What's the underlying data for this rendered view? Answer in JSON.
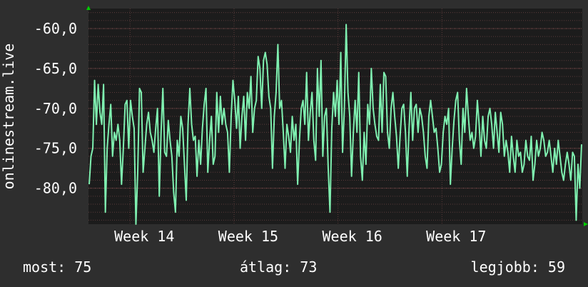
{
  "chart_data": {
    "type": "line",
    "ylabel": "onlinestream.live",
    "ylim": [
      -84.5,
      -57.5
    ],
    "y_ticks": [
      -60,
      -65,
      -70,
      -75,
      -80
    ],
    "y_tick_labels": [
      "-60,0",
      "-65,0",
      "-70,0",
      "-75,0",
      "-80,0"
    ],
    "x_range": [
      13.6,
      18.35
    ],
    "x_ticks": [
      14,
      15,
      16,
      17
    ],
    "x_tick_labels": [
      "Week 14",
      "Week 15",
      "Week 16",
      "Week 17"
    ],
    "grid": true,
    "colors": {
      "background": "#2e2e2e",
      "plot_background": "#1c1c1c",
      "grid": "#5a3a3a",
      "line": "#7ff0b0",
      "axis_arrow": "#00cc00"
    },
    "series": [
      {
        "values": [
          -79.5,
          -76,
          -75,
          -66.5,
          -72,
          -67,
          -70.5,
          -72,
          -67,
          -83,
          -75,
          -72,
          -69.5,
          -76,
          -73,
          -74,
          -72,
          -74,
          -79.5,
          -75,
          -69.5,
          -69,
          -75,
          -69,
          -71,
          -72.5,
          -84.5,
          -78,
          -67.5,
          -68,
          -78,
          -75,
          -72,
          -70.5,
          -73,
          -74,
          -75.5,
          -72.5,
          -70,
          -81,
          -73,
          -67.5,
          -75.5,
          -76,
          -71.5,
          -74,
          -76,
          -80.5,
          -83,
          -74,
          -76,
          -71,
          -72.5,
          -77,
          -81.5,
          -72,
          -67.5,
          -72,
          -74,
          -73.5,
          -78.5,
          -74,
          -77,
          -72.5,
          -69.5,
          -67.5,
          -78,
          -74,
          -71,
          -77,
          -76,
          -68,
          -73,
          -68.5,
          -72,
          -70,
          -72,
          -73,
          -78,
          -71,
          -66.5,
          -69,
          -72.5,
          -68.5,
          -75,
          -71,
          -68.5,
          -74,
          -68,
          -70,
          -66,
          -73,
          -70,
          -69,
          -63.5,
          -65,
          -70,
          -64,
          -63,
          -64.5,
          -68.5,
          -70,
          -77.5,
          -71,
          -68,
          -62,
          -70,
          -69,
          -73,
          -77.5,
          -72,
          -73.5,
          -75.5,
          -71,
          -74,
          -72,
          -79.5,
          -74,
          -70,
          -69,
          -72,
          -65.5,
          -74,
          -70.5,
          -68,
          -74,
          -76.5,
          -65,
          -71,
          -64,
          -76,
          -71,
          -70,
          -77.5,
          -83,
          -72.5,
          -68,
          -71,
          -66.5,
          -72,
          -63,
          -75.5,
          -70,
          -59.5,
          -68,
          -71,
          -78.5,
          -73,
          -69,
          -73,
          -65.5,
          -76,
          -79,
          -73,
          -77,
          -69.5,
          -72,
          -65,
          -70,
          -72,
          -73.5,
          -74,
          -67,
          -73,
          -65.5,
          -66,
          -73,
          -75,
          -70,
          -68,
          -71,
          -73.5,
          -77.5,
          -73.5,
          -70,
          -69.5,
          -73,
          -78.5,
          -72.5,
          -68,
          -74,
          -70,
          -69.5,
          -73,
          -70,
          -71,
          -73,
          -76,
          -77.5,
          -71,
          -69,
          -71,
          -73,
          -72.5,
          -75,
          -78,
          -77,
          -73,
          -71,
          -72,
          -70,
          -79.5,
          -75,
          -71.5,
          -69,
          -68,
          -74,
          -77,
          -70,
          -73,
          -67.5,
          -71,
          -74,
          -73,
          -75,
          -73.5,
          -69,
          -72,
          -76,
          -71,
          -74,
          -75,
          -71,
          -70,
          -72,
          -75,
          -70.5,
          -73,
          -75.5,
          -70.5,
          -72,
          -76,
          -74,
          -75.5,
          -78,
          -73.5,
          -76,
          -78,
          -74,
          -76,
          -75.5,
          -78,
          -77,
          -74,
          -76,
          -76.5,
          -73.5,
          -79,
          -77,
          -74,
          -76,
          -75,
          -73,
          -74,
          -76,
          -75.5,
          -74,
          -76,
          -78,
          -75,
          -77,
          -74,
          -76,
          -78,
          -79,
          -77,
          -75.5,
          -77,
          -79,
          -75.5,
          -76,
          -84,
          -77,
          -80,
          -74.5
        ]
      }
    ]
  },
  "stats": {
    "current": "most: 75",
    "average": "átlag: 73",
    "best": "legjobb: 59"
  }
}
